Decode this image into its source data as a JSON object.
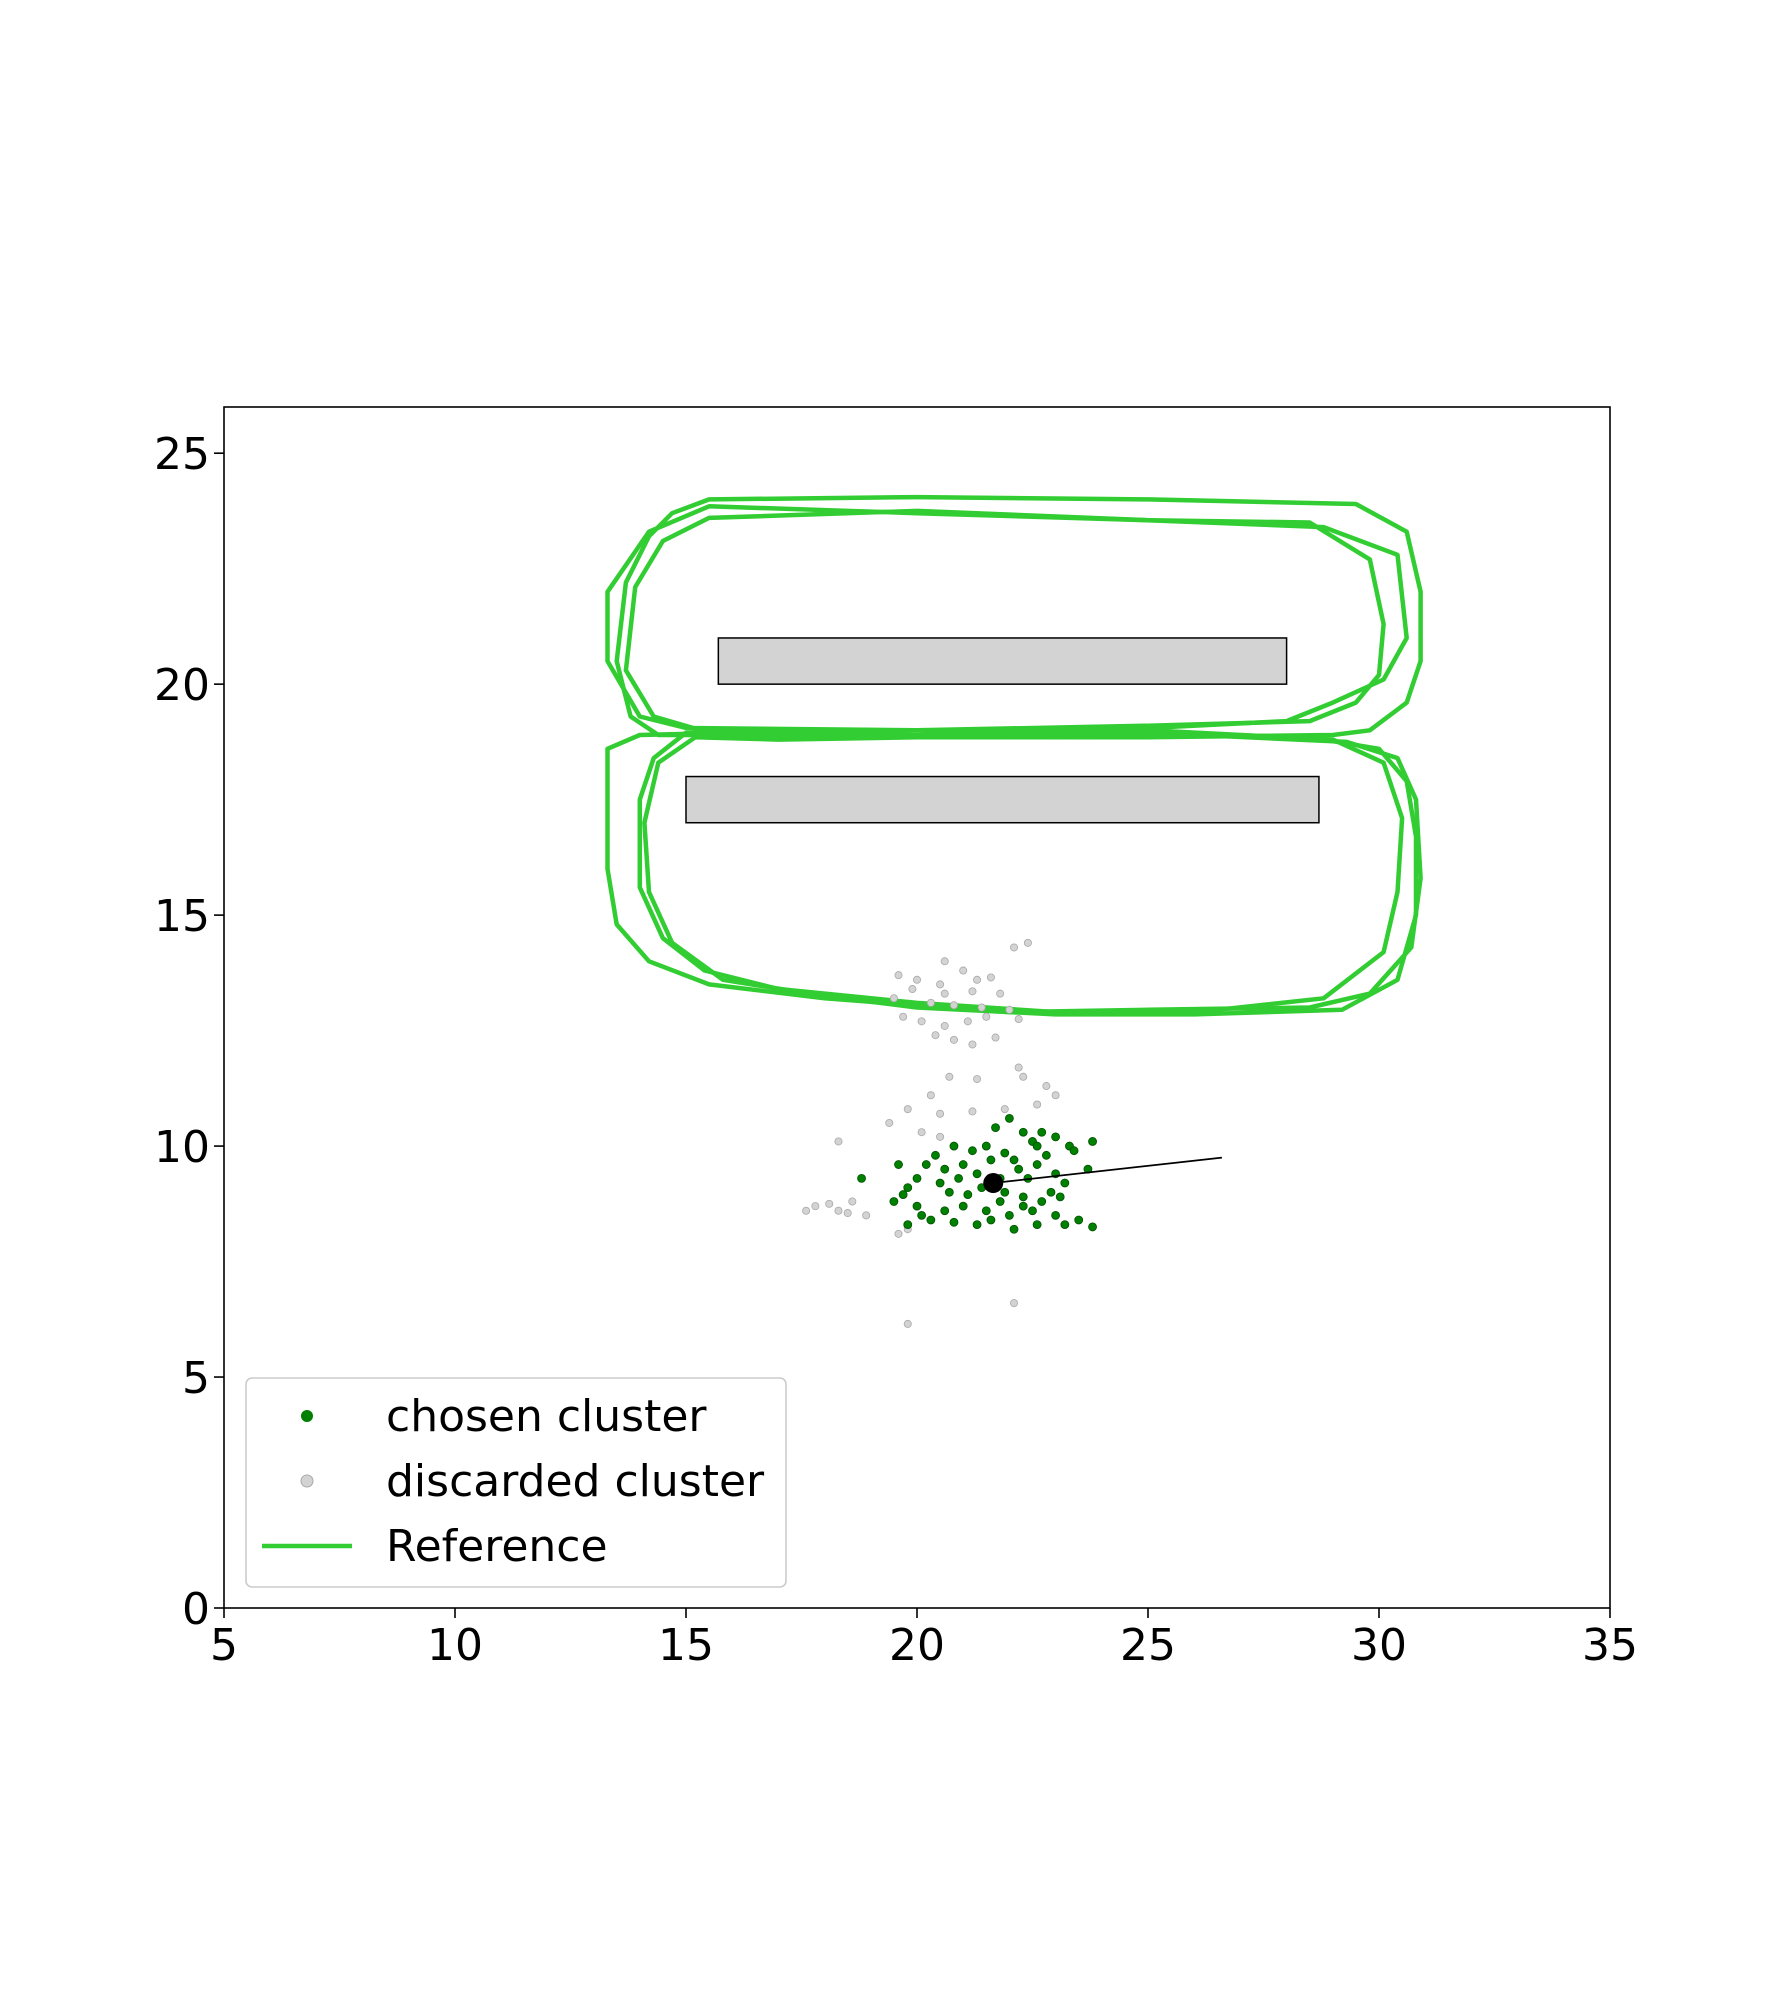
{
  "chart_data": {
    "type": "scatter",
    "xlim": [
      5,
      35
    ],
    "ylim": [
      0,
      26
    ],
    "x_ticks": [
      5,
      10,
      15,
      20,
      25,
      30,
      35
    ],
    "y_ticks": [
      0,
      5,
      10,
      15,
      20,
      25
    ],
    "grid": false,
    "legend_placement": "lower-left",
    "legend": [
      {
        "label": "chosen cluster",
        "marker": "point",
        "color": "#008000"
      },
      {
        "label": "discarded cluster",
        "marker": "point",
        "color": "#d3d3d3"
      },
      {
        "label": "Reference",
        "marker": "line",
        "color": "#32cd32"
      }
    ],
    "obstacles": [
      {
        "x0": 15.7,
        "x1": 28.0,
        "y0": 20.0,
        "y1": 21.0,
        "color": "#d3d3d3"
      },
      {
        "x0": 15.0,
        "x1": 28.7,
        "y0": 17.0,
        "y1": 18.0,
        "color": "#d3d3d3"
      }
    ],
    "reference_loops": [
      {
        "name": "Reference",
        "color": "#32cd32",
        "points": [
          [
            14.7,
            23.7
          ],
          [
            15.5,
            24.0
          ],
          [
            20,
            24.05
          ],
          [
            25,
            24.0
          ],
          [
            29.5,
            23.9
          ],
          [
            30.6,
            23.3
          ],
          [
            30.9,
            22.0
          ],
          [
            30.9,
            20.5
          ],
          [
            30.6,
            19.6
          ],
          [
            29.8,
            19.0
          ],
          [
            29.0,
            18.9
          ],
          [
            25,
            18.85
          ],
          [
            20,
            18.85
          ],
          [
            16.2,
            18.9
          ],
          [
            14.4,
            18.9
          ],
          [
            13.8,
            19.3
          ],
          [
            13.5,
            20.5
          ],
          [
            13.7,
            22.2
          ],
          [
            14.2,
            23.2
          ],
          [
            14.7,
            23.7
          ]
        ]
      },
      {
        "name": "Reference",
        "color": "#32cd32",
        "points": [
          [
            14.2,
            23.3
          ],
          [
            15.5,
            23.85
          ],
          [
            20,
            23.7
          ],
          [
            25,
            23.55
          ],
          [
            28.5,
            23.5
          ],
          [
            29.8,
            22.7
          ],
          [
            30.1,
            21.3
          ],
          [
            30.0,
            20.2
          ],
          [
            29.5,
            19.6
          ],
          [
            28.5,
            19.2
          ],
          [
            25,
            19.1
          ],
          [
            20,
            19.0
          ],
          [
            15,
            19.05
          ],
          [
            14.0,
            19.3
          ],
          [
            13.3,
            20.5
          ],
          [
            13.3,
            22.0
          ],
          [
            14.2,
            23.3
          ]
        ]
      },
      {
        "name": "Reference",
        "color": "#32cd32",
        "points": [
          [
            14.5,
            23.1
          ],
          [
            15.5,
            23.6
          ],
          [
            20,
            23.75
          ],
          [
            25,
            23.55
          ],
          [
            28.8,
            23.4
          ],
          [
            30.4,
            22.8
          ],
          [
            30.6,
            21.0
          ],
          [
            30.1,
            20.1
          ],
          [
            29.0,
            19.6
          ],
          [
            28.0,
            19.2
          ],
          [
            25,
            19.05
          ],
          [
            20,
            18.9
          ],
          [
            15.5,
            18.95
          ],
          [
            14.3,
            19.3
          ],
          [
            13.7,
            20.3
          ],
          [
            13.9,
            22.1
          ],
          [
            14.5,
            23.1
          ]
        ]
      },
      {
        "name": "Reference",
        "color": "#32cd32",
        "points": [
          [
            14.0,
            18.9
          ],
          [
            13.3,
            18.6
          ],
          [
            13.3,
            16.0
          ],
          [
            13.5,
            14.8
          ],
          [
            14.2,
            14.0
          ],
          [
            15.5,
            13.5
          ],
          [
            18,
            13.2
          ],
          [
            20,
            13.05
          ],
          [
            22,
            12.9
          ],
          [
            25,
            12.95
          ],
          [
            28.5,
            13.0
          ],
          [
            29.8,
            13.3
          ],
          [
            30.7,
            14.3
          ],
          [
            30.9,
            15.8
          ],
          [
            30.8,
            17.5
          ],
          [
            30.4,
            18.4
          ],
          [
            29.3,
            18.75
          ],
          [
            25,
            18.95
          ],
          [
            20,
            18.9
          ],
          [
            16,
            18.95
          ],
          [
            14.0,
            18.9
          ]
        ]
      },
      {
        "name": "Reference",
        "color": "#32cd32",
        "points": [
          [
            15.2,
            18.85
          ],
          [
            14.4,
            18.3
          ],
          [
            14.1,
            17.0
          ],
          [
            14.2,
            15.5
          ],
          [
            14.7,
            14.4
          ],
          [
            15.8,
            13.6
          ],
          [
            18,
            13.25
          ],
          [
            20,
            13.0
          ],
          [
            23,
            12.85
          ],
          [
            26,
            12.85
          ],
          [
            29.2,
            12.95
          ],
          [
            30.4,
            13.6
          ],
          [
            30.8,
            15.0
          ],
          [
            30.8,
            16.7
          ],
          [
            30.6,
            17.9
          ],
          [
            30.0,
            18.6
          ],
          [
            28.5,
            18.85
          ],
          [
            25,
            18.95
          ],
          [
            20,
            18.85
          ],
          [
            17,
            18.8
          ],
          [
            15.2,
            18.85
          ]
        ]
      },
      {
        "name": "Reference",
        "color": "#32cd32",
        "points": [
          [
            15.0,
            18.95
          ],
          [
            14.3,
            18.4
          ],
          [
            14.0,
            17.5
          ],
          [
            14.0,
            15.6
          ],
          [
            14.5,
            14.5
          ],
          [
            15.4,
            13.8
          ],
          [
            17,
            13.4
          ],
          [
            20,
            13.1
          ],
          [
            23,
            12.9
          ],
          [
            26.5,
            12.95
          ],
          [
            28.8,
            13.2
          ],
          [
            30.1,
            14.2
          ],
          [
            30.4,
            15.5
          ],
          [
            30.5,
            17.1
          ],
          [
            30.1,
            18.3
          ],
          [
            29.0,
            18.8
          ],
          [
            25,
            19.0
          ],
          [
            20,
            19.0
          ],
          [
            16,
            18.95
          ],
          [
            15.0,
            18.95
          ]
        ]
      }
    ],
    "series": [
      {
        "name": "chosen cluster",
        "color": "#008000",
        "points": [
          [
            22.0,
            10.6
          ],
          [
            22.3,
            10.3
          ],
          [
            22.7,
            10.3
          ],
          [
            23.0,
            10.2
          ],
          [
            21.7,
            10.4
          ],
          [
            22.5,
            10.1
          ],
          [
            23.3,
            10.0
          ],
          [
            21.5,
            10.0
          ],
          [
            20.8,
            10.0
          ],
          [
            21.2,
            9.9
          ],
          [
            20.4,
            9.8
          ],
          [
            22.1,
            9.7
          ],
          [
            22.8,
            9.8
          ],
          [
            23.4,
            9.9
          ],
          [
            23.8,
            10.1
          ],
          [
            19.6,
            9.6
          ],
          [
            20.2,
            9.6
          ],
          [
            20.6,
            9.5
          ],
          [
            21.0,
            9.6
          ],
          [
            21.6,
            9.7
          ],
          [
            22.2,
            9.5
          ],
          [
            22.6,
            9.6
          ],
          [
            23.0,
            9.4
          ],
          [
            23.7,
            9.5
          ],
          [
            20.0,
            9.3
          ],
          [
            20.5,
            9.2
          ],
          [
            21.3,
            9.4
          ],
          [
            21.8,
            9.3
          ],
          [
            22.4,
            9.3
          ],
          [
            23.2,
            9.2
          ],
          [
            18.8,
            9.3
          ],
          [
            19.8,
            9.1
          ],
          [
            20.7,
            9.0
          ],
          [
            21.1,
            8.95
          ],
          [
            21.9,
            9.0
          ],
          [
            22.3,
            8.9
          ],
          [
            22.7,
            8.8
          ],
          [
            23.1,
            8.9
          ],
          [
            19.5,
            8.8
          ],
          [
            20.0,
            8.7
          ],
          [
            20.6,
            8.6
          ],
          [
            21.0,
            8.7
          ],
          [
            21.5,
            8.6
          ],
          [
            22.0,
            8.5
          ],
          [
            22.5,
            8.6
          ],
          [
            23.0,
            8.5
          ],
          [
            23.5,
            8.4
          ],
          [
            23.8,
            8.25
          ],
          [
            19.8,
            8.3
          ],
          [
            20.3,
            8.4
          ],
          [
            20.8,
            8.35
          ],
          [
            21.3,
            8.3
          ],
          [
            21.6,
            8.4
          ],
          [
            22.1,
            8.2
          ],
          [
            22.6,
            8.3
          ],
          [
            23.2,
            8.3
          ],
          [
            20.1,
            8.5
          ],
          [
            22.3,
            8.7
          ],
          [
            21.8,
            8.8
          ],
          [
            20.9,
            9.3
          ],
          [
            22.9,
            9.0
          ],
          [
            21.4,
            9.1
          ],
          [
            22.6,
            10.0
          ],
          [
            21.9,
            9.85
          ],
          [
            19.7,
            8.95
          ]
        ]
      },
      {
        "name": "discarded cluster",
        "color": "#d3d3d3",
        "points": [
          [
            20.6,
            14.0
          ],
          [
            21.0,
            13.8
          ],
          [
            19.6,
            13.7
          ],
          [
            20.0,
            13.6
          ],
          [
            20.5,
            13.5
          ],
          [
            21.3,
            13.6
          ],
          [
            21.6,
            13.65
          ],
          [
            19.9,
            13.4
          ],
          [
            20.6,
            13.3
          ],
          [
            21.2,
            13.35
          ],
          [
            21.8,
            13.3
          ],
          [
            19.5,
            13.2
          ],
          [
            20.3,
            13.1
          ],
          [
            20.8,
            13.05
          ],
          [
            21.4,
            13.0
          ],
          [
            22.0,
            12.95
          ],
          [
            19.7,
            12.8
          ],
          [
            20.1,
            12.7
          ],
          [
            20.6,
            12.6
          ],
          [
            21.1,
            12.7
          ],
          [
            21.5,
            12.8
          ],
          [
            22.2,
            12.75
          ],
          [
            20.4,
            12.4
          ],
          [
            20.8,
            12.3
          ],
          [
            21.2,
            12.2
          ],
          [
            21.7,
            12.35
          ],
          [
            22.1,
            14.3
          ],
          [
            22.4,
            14.4
          ],
          [
            20.7,
            11.5
          ],
          [
            21.3,
            11.45
          ],
          [
            22.2,
            11.7
          ],
          [
            22.3,
            11.5
          ],
          [
            22.8,
            11.3
          ],
          [
            23.0,
            11.1
          ],
          [
            22.6,
            10.9
          ],
          [
            20.3,
            11.1
          ],
          [
            19.8,
            10.8
          ],
          [
            20.5,
            10.7
          ],
          [
            21.2,
            10.75
          ],
          [
            21.9,
            10.8
          ],
          [
            20.1,
            10.3
          ],
          [
            20.5,
            10.2
          ],
          [
            19.4,
            10.5
          ],
          [
            18.3,
            10.1
          ],
          [
            17.6,
            8.6
          ],
          [
            17.8,
            8.7
          ],
          [
            18.3,
            8.6
          ],
          [
            18.5,
            8.55
          ],
          [
            18.9,
            8.5
          ],
          [
            18.1,
            8.75
          ],
          [
            18.6,
            8.8
          ],
          [
            19.6,
            8.1
          ],
          [
            19.8,
            8.2
          ],
          [
            22.1,
            6.6
          ],
          [
            19.8,
            6.15
          ]
        ]
      },
      {
        "name": "robot",
        "color": "#000000",
        "points": [
          [
            21.65,
            9.2
          ]
        ]
      }
    ],
    "heading_line": {
      "color": "#000000",
      "points": [
        [
          21.65,
          9.2
        ],
        [
          26.6,
          9.75
        ]
      ]
    }
  }
}
